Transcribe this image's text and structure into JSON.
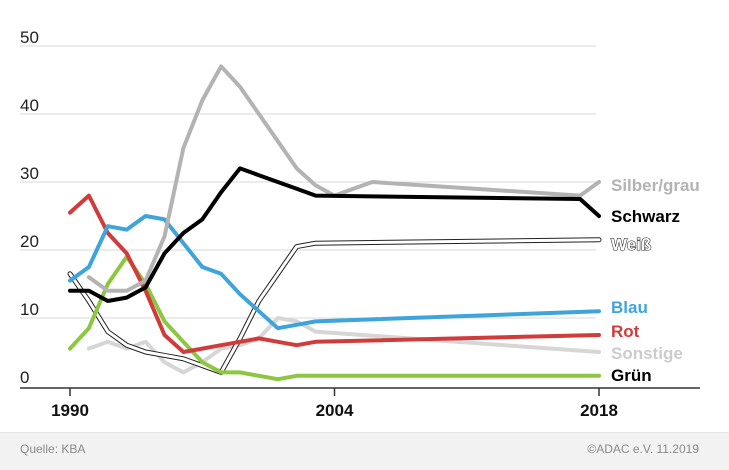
{
  "chart_data": {
    "type": "line",
    "title": "",
    "xlabel": "",
    "ylabel": "",
    "xlim": [
      1990,
      2018
    ],
    "ylim": [
      0,
      50
    ],
    "x_ticks": [
      "1990",
      "2004",
      "2018"
    ],
    "y_ticks": [
      "0",
      "10",
      "20",
      "30",
      "40",
      "50"
    ],
    "grid": true,
    "legend": "right",
    "series": [
      {
        "name": "Silber/grau",
        "color": "#b3b3b3",
        "label_color": "#b3b3b3",
        "style": "solid",
        "points": [
          [
            1991,
            16
          ],
          [
            1992,
            14
          ],
          [
            1993,
            14
          ],
          [
            1994,
            15.5
          ],
          [
            1995,
            22
          ],
          [
            1996,
            35
          ],
          [
            1997,
            42
          ],
          [
            1998,
            47
          ],
          [
            1999,
            44
          ],
          [
            2000,
            40
          ],
          [
            2001,
            36
          ],
          [
            2002,
            32
          ],
          [
            2003,
            29.5
          ],
          [
            2004,
            28
          ],
          [
            2005,
            29
          ],
          [
            2006,
            30
          ],
          [
            2017,
            28
          ],
          [
            2018,
            30
          ]
        ]
      },
      {
        "name": "Schwarz",
        "color": "#000000",
        "label_color": "#000000",
        "style": "solid",
        "points": [
          [
            1990,
            14
          ],
          [
            1991,
            14
          ],
          [
            1992,
            12.5
          ],
          [
            1993,
            13
          ],
          [
            1994,
            14.5
          ],
          [
            1995,
            19.5
          ],
          [
            1996,
            22.5
          ],
          [
            1997,
            24.5
          ],
          [
            1998,
            28.5
          ],
          [
            1999,
            32
          ],
          [
            2000,
            31
          ],
          [
            2001,
            30
          ],
          [
            2002,
            29
          ],
          [
            2003,
            28
          ],
          [
            2017,
            27.5
          ],
          [
            2018,
            25
          ]
        ]
      },
      {
        "name": "Weiß",
        "color": "#ffffff",
        "label_color": "#ffffff",
        "style": "outline",
        "points": [
          [
            1990,
            16.5
          ],
          [
            1991,
            12.5
          ],
          [
            1992,
            8
          ],
          [
            1993,
            6
          ],
          [
            1994,
            5
          ],
          [
            1995,
            4.5
          ],
          [
            1996,
            4
          ],
          [
            1997,
            3
          ],
          [
            1998,
            2
          ],
          [
            1999,
            7
          ],
          [
            2000,
            12.5
          ],
          [
            2001,
            16.5
          ],
          [
            2002,
            20.5
          ],
          [
            2003,
            21
          ],
          [
            2018,
            21.5
          ]
        ]
      },
      {
        "name": "Blau",
        "color": "#3fa4dc",
        "label_color": "#3fa4dc",
        "style": "solid",
        "points": [
          [
            1990,
            15.5
          ],
          [
            1991,
            17.5
          ],
          [
            1992,
            23.5
          ],
          [
            1993,
            23
          ],
          [
            1994,
            25
          ],
          [
            1995,
            24.5
          ],
          [
            1996,
            21
          ],
          [
            1997,
            17.5
          ],
          [
            1998,
            16.5
          ],
          [
            1999,
            13.5
          ],
          [
            2000,
            11
          ],
          [
            2001,
            8.5
          ],
          [
            2002,
            9
          ],
          [
            2003,
            9.5
          ],
          [
            2018,
            11
          ]
        ]
      },
      {
        "name": "Rot",
        "color": "#d03c3c",
        "label_color": "#d03c3c",
        "style": "solid",
        "points": [
          [
            1990,
            25.5
          ],
          [
            1991,
            28
          ],
          [
            1992,
            22.5
          ],
          [
            1993,
            19.5
          ],
          [
            1994,
            14
          ],
          [
            1995,
            7.5
          ],
          [
            1996,
            5
          ],
          [
            1997,
            5.5
          ],
          [
            1998,
            6
          ],
          [
            1999,
            6.5
          ],
          [
            2000,
            7
          ],
          [
            2001,
            6.5
          ],
          [
            2002,
            6
          ],
          [
            2003,
            6.5
          ],
          [
            2018,
            7.5
          ]
        ]
      },
      {
        "name": "Sonstige",
        "color": "#d6d6d6",
        "label_color": "#cccccc",
        "style": "solid",
        "points": [
          [
            1991,
            5.5
          ],
          [
            1992,
            6.5
          ],
          [
            1993,
            5.5
          ],
          [
            1994,
            6.5
          ],
          [
            1995,
            3.5
          ],
          [
            1996,
            2
          ],
          [
            1997,
            3.5
          ],
          [
            1998,
            5.5
          ],
          [
            1999,
            6
          ],
          [
            2000,
            7
          ],
          [
            2001,
            10
          ],
          [
            2002,
            9.5
          ],
          [
            2003,
            8
          ],
          [
            2018,
            5
          ]
        ]
      },
      {
        "name": "Grün",
        "color": "#8dc63f",
        "label_color": "#000000",
        "style": "solid",
        "points": [
          [
            1990,
            5.5
          ],
          [
            1991,
            8.5
          ],
          [
            1992,
            15
          ],
          [
            1993,
            19
          ],
          [
            1994,
            15
          ],
          [
            1995,
            9.5
          ],
          [
            1996,
            6.5
          ],
          [
            1997,
            3.5
          ],
          [
            1998,
            2
          ],
          [
            1999,
            2
          ],
          [
            2000,
            1.5
          ],
          [
            2001,
            1
          ],
          [
            2002,
            1.5
          ],
          [
            2003,
            1.5
          ],
          [
            2018,
            1.5
          ]
        ]
      }
    ]
  },
  "footer": {
    "source": "Quelle: KBA",
    "copyright": "©ADAC e.V.  11.2019"
  }
}
